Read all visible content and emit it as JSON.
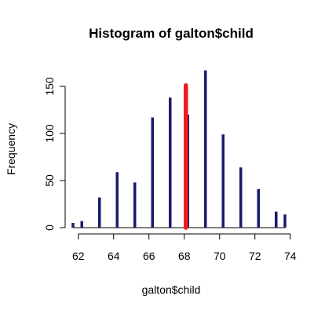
{
  "chart_data": {
    "type": "bar",
    "title": "Histogram of galton$child",
    "xlabel": "galton$child",
    "ylabel": "Frequency",
    "xlim": [
      61.7,
      73.7
    ],
    "ylim": [
      0,
      167
    ],
    "x_ticks": [
      62,
      64,
      66,
      68,
      70,
      72,
      74
    ],
    "y_ticks": [
      0,
      50,
      100,
      150
    ],
    "bar_color": "#1a1a6e",
    "highlight_color": "#ee1c1c",
    "x": [
      61.7,
      62.2,
      63.2,
      64.2,
      65.2,
      66.2,
      67.2,
      68.2,
      69.2,
      70.2,
      71.2,
      72.2,
      73.2,
      73.7
    ],
    "values": [
      5,
      7,
      32,
      59,
      48,
      117,
      138,
      120,
      167,
      99,
      64,
      41,
      17,
      14
    ],
    "highlight_line": {
      "x": 68.09,
      "value": 151
    }
  }
}
